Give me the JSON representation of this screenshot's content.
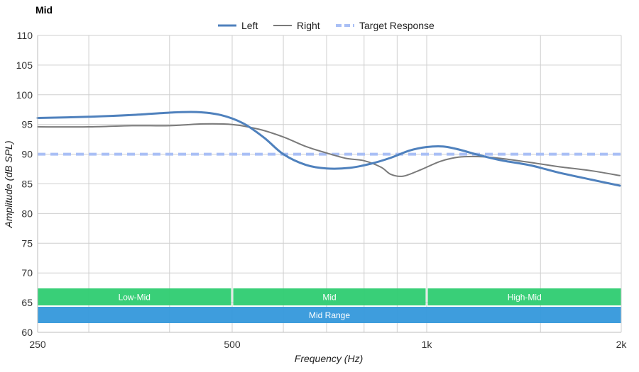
{
  "chart_data": {
    "type": "line",
    "title": "Mid",
    "xlabel": "Frequency (Hz)",
    "ylabel": "Amplitude (dB SPL)",
    "xscale": "log",
    "xlim": [
      250,
      2000
    ],
    "ylim": [
      60,
      110
    ],
    "grid": true,
    "legend_position": "top-center",
    "x_ticks": [
      {
        "value": 250,
        "label": "250"
      },
      {
        "value": 500,
        "label": "500"
      },
      {
        "value": 1000,
        "label": "1k"
      },
      {
        "value": 2000,
        "label": "2k"
      }
    ],
    "x_minor_gridlines": [
      300,
      400,
      600,
      700,
      800,
      900,
      1500
    ],
    "y_ticks": [
      60,
      65,
      70,
      75,
      80,
      85,
      90,
      95,
      100,
      105,
      110
    ],
    "series": [
      {
        "name": "Left",
        "color": "#4f81bd",
        "style": "solid-thick",
        "points": [
          [
            250,
            96.1
          ],
          [
            300,
            96.3
          ],
          [
            350,
            96.6
          ],
          [
            400,
            97.0
          ],
          [
            440,
            97.1
          ],
          [
            480,
            96.6
          ],
          [
            520,
            95.2
          ],
          [
            560,
            92.8
          ],
          [
            600,
            90.0
          ],
          [
            650,
            88.2
          ],
          [
            700,
            87.6
          ],
          [
            760,
            87.7
          ],
          [
            820,
            88.4
          ],
          [
            880,
            89.4
          ],
          [
            940,
            90.6
          ],
          [
            1000,
            91.2
          ],
          [
            1060,
            91.3
          ],
          [
            1120,
            90.8
          ],
          [
            1200,
            89.9
          ],
          [
            1300,
            89.0
          ],
          [
            1450,
            88.1
          ],
          [
            1600,
            86.9
          ],
          [
            1800,
            85.7
          ],
          [
            1990,
            84.7
          ]
        ]
      },
      {
        "name": "Right",
        "color": "#7a7a7a",
        "style": "solid-thin",
        "points": [
          [
            250,
            94.6
          ],
          [
            300,
            94.6
          ],
          [
            350,
            94.8
          ],
          [
            400,
            94.8
          ],
          [
            450,
            95.1
          ],
          [
            500,
            95.0
          ],
          [
            550,
            94.2
          ],
          [
            600,
            92.9
          ],
          [
            650,
            91.3
          ],
          [
            700,
            90.2
          ],
          [
            750,
            89.3
          ],
          [
            800,
            88.9
          ],
          [
            850,
            87.8
          ],
          [
            880,
            86.6
          ],
          [
            920,
            86.3
          ],
          [
            980,
            87.4
          ],
          [
            1050,
            88.8
          ],
          [
            1120,
            89.5
          ],
          [
            1200,
            89.6
          ],
          [
            1300,
            89.3
          ],
          [
            1450,
            88.6
          ],
          [
            1600,
            87.9
          ],
          [
            1800,
            87.2
          ],
          [
            1990,
            86.4
          ]
        ]
      },
      {
        "name": "Target Response",
        "color": "#a9bff5",
        "style": "dashed",
        "points": [
          [
            250,
            90
          ],
          [
            2000,
            90
          ]
        ]
      }
    ],
    "bands": [
      {
        "label": "Low-Mid",
        "from": 250,
        "to": 500,
        "row": 1,
        "color": "#2ecc71"
      },
      {
        "label": "Mid",
        "from": 500,
        "to": 1000,
        "row": 1,
        "color": "#2ecc71"
      },
      {
        "label": "High-Mid",
        "from": 1000,
        "to": 2000,
        "row": 1,
        "color": "#2ecc71"
      },
      {
        "label": "Mid Range",
        "from": 250,
        "to": 2000,
        "row": 2,
        "color": "#3498db"
      }
    ]
  }
}
